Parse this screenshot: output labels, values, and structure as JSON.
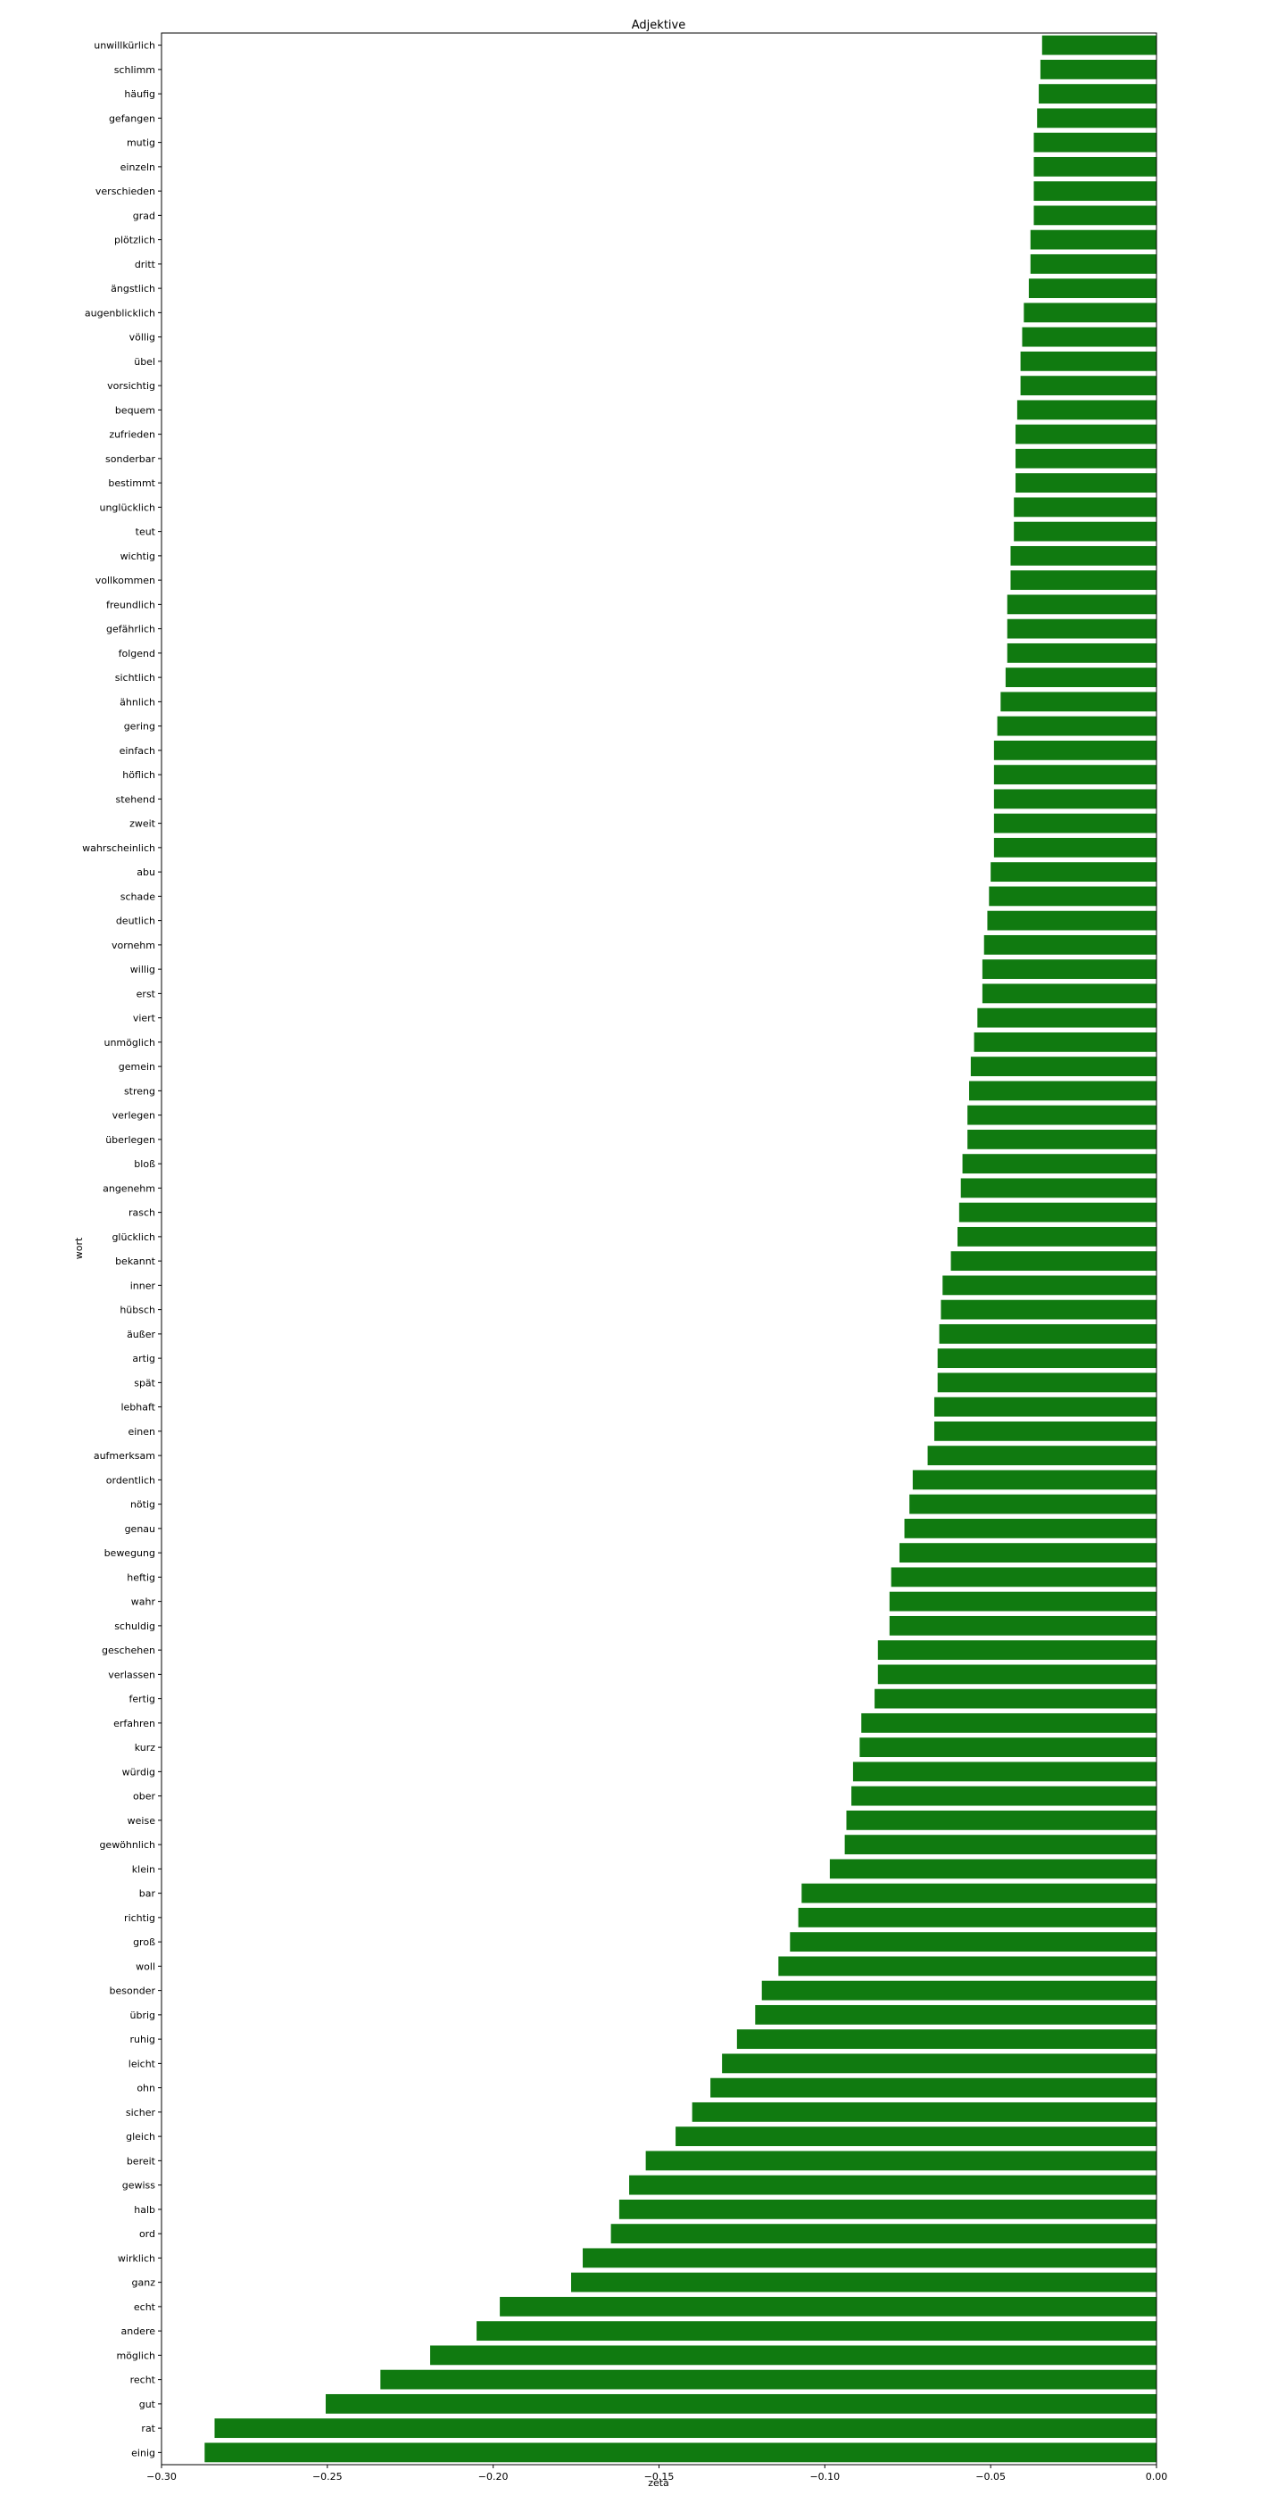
{
  "chart_data": {
    "type": "bar",
    "orientation": "horizontal",
    "title": "Adjektive",
    "xlabel": "zeta",
    "ylabel": "wort",
    "xlim": [
      -0.3,
      0.0
    ],
    "xticks": [
      "−0.30",
      "−0.25",
      "−0.20",
      "−0.15",
      "−0.10",
      "−0.05",
      "0.00"
    ],
    "xtick_values": [
      -0.3,
      -0.25,
      -0.2,
      -0.15,
      -0.1,
      -0.05,
      0.0
    ],
    "bar_color": "#107a10",
    "grid": false,
    "categories": [
      "unwillkürlich",
      "schlimm",
      "häufig",
      "gefangen",
      "mutig",
      "einzeln",
      "verschieden",
      "grad",
      "plötzlich",
      "dritt",
      "ängstlich",
      "augenblicklich",
      "völlig",
      "übel",
      "vorsichtig",
      "bequem",
      "zufrieden",
      "sonderbar",
      "bestimmt",
      "unglücklich",
      "teut",
      "wichtig",
      "vollkommen",
      "freundlich",
      "gefährlich",
      "folgend",
      "sichtlich",
      "ähnlich",
      "gering",
      "einfach",
      "höflich",
      "stehend",
      "zweit",
      "wahrscheinlich",
      "abu",
      "schade",
      "deutlich",
      "vornehm",
      "willig",
      "erst",
      "viert",
      "unmöglich",
      "gemein",
      "streng",
      "verlegen",
      "überlegen",
      "bloß",
      "angenehm",
      "rasch",
      "glücklich",
      "bekannt",
      "inner",
      "hübsch",
      "äußer",
      "artig",
      "spät",
      "lebhaft",
      "einen",
      "aufmerksam",
      "ordentlich",
      "nötig",
      "genau",
      "bewegung",
      "heftig",
      "wahr",
      "schuldig",
      "geschehen",
      "verlassen",
      "fertig",
      "erfahren",
      "kurz",
      "würdig",
      "ober",
      "weise",
      "gewöhnlich",
      "klein",
      "bar",
      "richtig",
      "groß",
      "woll",
      "besonder",
      "übrig",
      "ruhig",
      "leicht",
      "ohn",
      "sicher",
      "gleich",
      "bereit",
      "gewiss",
      "halb",
      "ord",
      "wirklich",
      "ganz",
      "echt",
      "andere",
      "möglich",
      "recht",
      "gut",
      "rat",
      "einig"
    ],
    "values": [
      -0.0345,
      -0.035,
      -0.0355,
      -0.036,
      -0.037,
      -0.037,
      -0.037,
      -0.037,
      -0.038,
      -0.038,
      -0.0385,
      -0.04,
      -0.0405,
      -0.041,
      -0.041,
      -0.042,
      -0.0425,
      -0.0425,
      -0.0425,
      -0.043,
      -0.043,
      -0.044,
      -0.044,
      -0.045,
      -0.045,
      -0.045,
      -0.0455,
      -0.047,
      -0.048,
      -0.049,
      -0.049,
      -0.049,
      -0.049,
      -0.049,
      -0.05,
      -0.0505,
      -0.051,
      -0.052,
      -0.0525,
      -0.0525,
      -0.054,
      -0.055,
      -0.056,
      -0.0565,
      -0.057,
      -0.057,
      -0.0585,
      -0.059,
      -0.0595,
      -0.06,
      -0.062,
      -0.0645,
      -0.065,
      -0.0655,
      -0.066,
      -0.066,
      -0.067,
      -0.067,
      -0.069,
      -0.0735,
      -0.0745,
      -0.076,
      -0.0775,
      -0.08,
      -0.0805,
      -0.0805,
      -0.084,
      -0.084,
      -0.085,
      -0.089,
      -0.0895,
      -0.0915,
      -0.092,
      -0.0935,
      -0.094,
      -0.0985,
      -0.107,
      -0.108,
      -0.1105,
      -0.114,
      -0.119,
      -0.121,
      -0.1265,
      -0.131,
      -0.1345,
      -0.14,
      -0.145,
      -0.154,
      -0.159,
      -0.162,
      -0.1645,
      -0.173,
      -0.1765,
      -0.198,
      -0.205,
      -0.219,
      -0.234,
      -0.2505,
      -0.284,
      -0.287
    ]
  }
}
